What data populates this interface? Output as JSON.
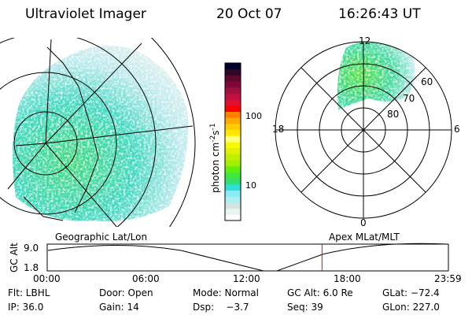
{
  "header": {
    "instrument": "Ultraviolet Imager",
    "date": "20 Oct 07",
    "time": "16:26:43 UT"
  },
  "colorbar": {
    "label": "photon cm",
    "label_sup1": "-2",
    "label_s": "s",
    "label_sup2": "-1",
    "ticks": [
      "100",
      "10"
    ],
    "colors": [
      "#ffffff",
      "#e8f4ee",
      "#d4e4e2",
      "#a8f0f4",
      "#88ecf4",
      "#30e0d8",
      "#30e070",
      "#40e840",
      "#60f010",
      "#a0f000",
      "#c0f000",
      "#e0f000",
      "#f8f800",
      "#ffff80",
      "#ffe800",
      "#ffcc00",
      "#ffaa00",
      "#ff8000",
      "#ff0000",
      "#e01030",
      "#c01040",
      "#a01040",
      "#800838",
      "#600830",
      "#300828",
      "#000030"
    ]
  },
  "polar": {
    "labels": {
      "top": "12",
      "bottom": "0",
      "left": "18",
      "right": "6"
    },
    "rings": [
      "80",
      "70",
      "60"
    ]
  },
  "timeline": {
    "left_title": "Geographic Lat/Lon",
    "right_title": "Apex MLat/MLT",
    "ylabel": "GC Alt",
    "yticks": [
      "9.0",
      "1.8"
    ],
    "xticks": [
      "00:00",
      "06:00",
      "12:00",
      "18:00",
      "23:59"
    ],
    "current_fraction": 0.685,
    "marker_color": "#ff0000"
  },
  "info": {
    "row1": [
      "Flt: LBHL",
      "Door: Open",
      "Mode: Normal",
      "GC Alt: 6.0 Re",
      "GLat: −72.4"
    ],
    "row2": [
      "IP: 36.0",
      "Gain: 14",
      "Dsp:    −3.7",
      "Seq: 39",
      "GLon: 227.0"
    ]
  }
}
